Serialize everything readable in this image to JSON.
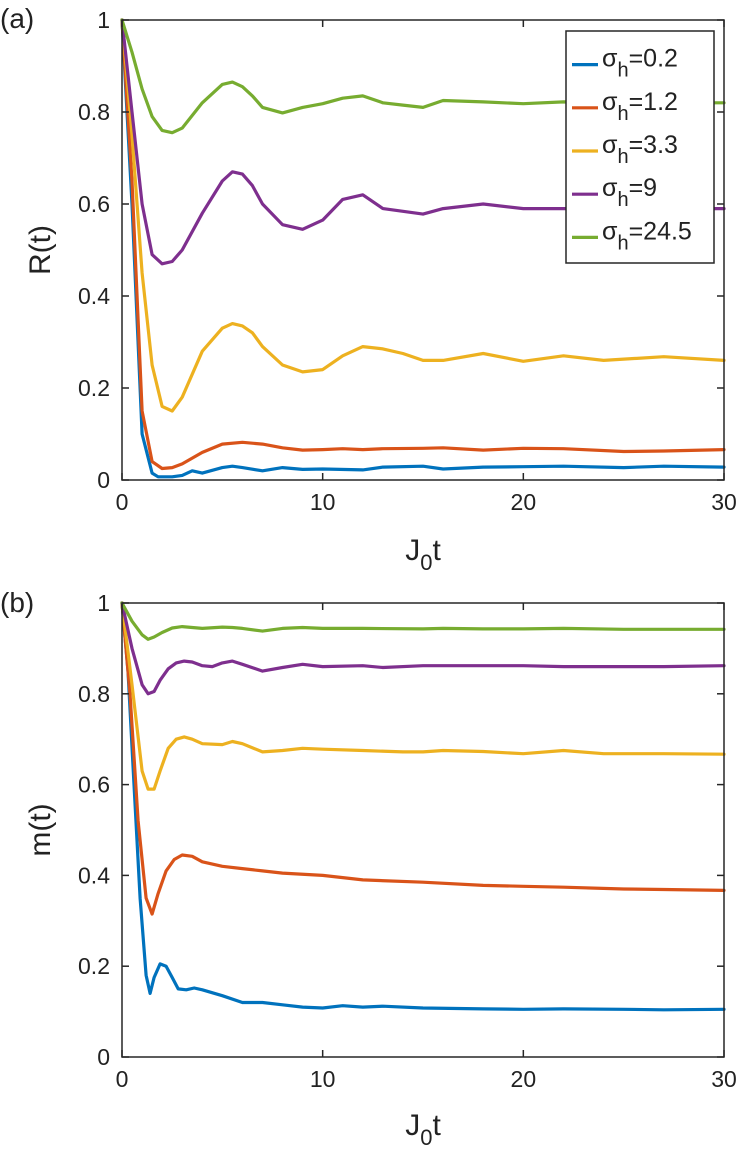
{
  "chart_data": [
    {
      "type": "line",
      "panel_label": "(a)",
      "title": "",
      "xlabel": "J",
      "xlabel_sub": "0",
      "xlabel_suffix": "t",
      "ylabel": "R(t)",
      "xlim": [
        0,
        30
      ],
      "ylim": [
        0,
        1
      ],
      "xticks": [
        0,
        10,
        20,
        30
      ],
      "yticks": [
        0,
        0.2,
        0.4,
        0.6,
        0.8,
        1
      ],
      "ytick_labels": [
        "0",
        "0.2",
        "0.4",
        "0.6",
        "0.8",
        "1"
      ],
      "xtick_labels": [
        "0",
        "10",
        "20",
        "30"
      ],
      "grid": false,
      "legend": {
        "position": "top-right",
        "entries": [
          {
            "symbol": "σ",
            "sub": "h",
            "value": "=0.2"
          },
          {
            "symbol": "σ",
            "sub": "h",
            "value": "=1.2"
          },
          {
            "symbol": "σ",
            "sub": "h",
            "value": "=3.3"
          },
          {
            "symbol": "σ",
            "sub": "h",
            "value": "=9"
          },
          {
            "symbol": "σ",
            "sub": "h",
            "value": "=24.5"
          }
        ]
      },
      "series": [
        {
          "name": "σh=0.2",
          "color": "#0072BD",
          "x": [
            0,
            0.5,
            1,
            1.5,
            1.8,
            2.5,
            3,
            3.5,
            4,
            5,
            5.5,
            6,
            7,
            8,
            9,
            10,
            12,
            13,
            15,
            16,
            18,
            20,
            22,
            25,
            27,
            30
          ],
          "y": [
            1,
            0.6,
            0.1,
            0.015,
            0.007,
            0.007,
            0.01,
            0.02,
            0.015,
            0.027,
            0.03,
            0.027,
            0.02,
            0.027,
            0.023,
            0.024,
            0.022,
            0.028,
            0.03,
            0.024,
            0.028,
            0.029,
            0.03,
            0.027,
            0.03,
            0.028
          ]
        },
        {
          "name": "σh=1.2",
          "color": "#D95319",
          "x": [
            0,
            0.5,
            1,
            1.5,
            2,
            2.5,
            3,
            4,
            5,
            6,
            7,
            8,
            9,
            10,
            11,
            12,
            13,
            15,
            16,
            18,
            20,
            22,
            25,
            27,
            30
          ],
          "y": [
            1,
            0.65,
            0.15,
            0.04,
            0.025,
            0.027,
            0.035,
            0.06,
            0.078,
            0.082,
            0.078,
            0.07,
            0.065,
            0.066,
            0.068,
            0.066,
            0.068,
            0.069,
            0.07,
            0.065,
            0.069,
            0.068,
            0.062,
            0.063,
            0.066
          ]
        },
        {
          "name": "σh=3.3",
          "color": "#EDB120",
          "x": [
            0,
            0.5,
            1,
            1.5,
            2,
            2.5,
            3,
            4,
            5,
            5.5,
            6,
            6.5,
            7,
            8,
            9,
            10,
            11,
            12,
            13,
            14,
            15,
            16,
            18,
            20,
            22,
            24,
            27,
            30
          ],
          "y": [
            1,
            0.75,
            0.45,
            0.25,
            0.16,
            0.15,
            0.18,
            0.28,
            0.33,
            0.34,
            0.335,
            0.32,
            0.29,
            0.25,
            0.235,
            0.24,
            0.27,
            0.29,
            0.285,
            0.275,
            0.26,
            0.26,
            0.275,
            0.258,
            0.27,
            0.26,
            0.268,
            0.26
          ]
        },
        {
          "name": "σh=9",
          "color": "#7E2F8E",
          "x": [
            0,
            0.5,
            1,
            1.5,
            2,
            2.5,
            3,
            4,
            5,
            5.5,
            6,
            6.5,
            7,
            8,
            9,
            10,
            11,
            12,
            13,
            15,
            16,
            18,
            20,
            22,
            25,
            27,
            30
          ],
          "y": [
            1,
            0.8,
            0.6,
            0.49,
            0.47,
            0.475,
            0.5,
            0.58,
            0.65,
            0.67,
            0.665,
            0.64,
            0.6,
            0.555,
            0.545,
            0.565,
            0.61,
            0.62,
            0.59,
            0.578,
            0.59,
            0.6,
            0.59,
            0.59,
            0.59,
            0.59,
            0.59
          ]
        },
        {
          "name": "σh=24.5",
          "color": "#77AC30",
          "x": [
            0,
            0.5,
            1,
            1.5,
            2,
            2.5,
            3,
            4,
            5,
            5.5,
            6,
            6.5,
            7,
            8,
            9,
            10,
            11,
            12,
            13,
            14,
            15,
            16,
            18,
            20,
            22,
            25,
            27,
            30
          ],
          "y": [
            1,
            0.93,
            0.85,
            0.79,
            0.76,
            0.755,
            0.765,
            0.82,
            0.86,
            0.865,
            0.855,
            0.835,
            0.81,
            0.798,
            0.81,
            0.818,
            0.83,
            0.835,
            0.82,
            0.815,
            0.81,
            0.825,
            0.822,
            0.818,
            0.822,
            0.82,
            0.82,
            0.82
          ]
        }
      ]
    },
    {
      "type": "line",
      "panel_label": "(b)",
      "title": "",
      "xlabel": "J",
      "xlabel_sub": "0",
      "xlabel_suffix": "t",
      "ylabel": "m(t)",
      "xlim": [
        0,
        30
      ],
      "ylim": [
        0,
        1
      ],
      "xticks": [
        0,
        10,
        20,
        30
      ],
      "yticks": [
        0,
        0.2,
        0.4,
        0.6,
        0.8,
        1
      ],
      "ytick_labels": [
        "0",
        "0.2",
        "0.4",
        "0.6",
        "0.8",
        "1"
      ],
      "xtick_labels": [
        "0",
        "10",
        "20",
        "30"
      ],
      "grid": false,
      "series": [
        {
          "name": "σh=0.2",
          "color": "#0072BD",
          "x": [
            0,
            0.3,
            0.6,
            0.9,
            1.2,
            1.4,
            1.6,
            1.9,
            2.2,
            2.5,
            2.8,
            3.2,
            3.6,
            4,
            5,
            6,
            7,
            8,
            9,
            10,
            11,
            12,
            13,
            15,
            18,
            20,
            22,
            25,
            27,
            30
          ],
          "y": [
            1,
            0.85,
            0.6,
            0.35,
            0.18,
            0.14,
            0.175,
            0.205,
            0.2,
            0.175,
            0.15,
            0.148,
            0.152,
            0.148,
            0.135,
            0.12,
            0.12,
            0.115,
            0.11,
            0.108,
            0.113,
            0.11,
            0.112,
            0.108,
            0.106,
            0.105,
            0.106,
            0.105,
            0.104,
            0.105
          ]
        },
        {
          "name": "σh=1.2",
          "color": "#D95319",
          "x": [
            0,
            0.4,
            0.8,
            1.2,
            1.5,
            1.8,
            2.2,
            2.6,
            3,
            3.5,
            4,
            5,
            6,
            7,
            8,
            10,
            12,
            15,
            18,
            20,
            22,
            25,
            27,
            30
          ],
          "y": [
            1,
            0.8,
            0.52,
            0.35,
            0.315,
            0.36,
            0.41,
            0.435,
            0.445,
            0.442,
            0.43,
            0.42,
            0.415,
            0.41,
            0.405,
            0.4,
            0.39,
            0.385,
            0.378,
            0.376,
            0.374,
            0.37,
            0.369,
            0.367
          ]
        },
        {
          "name": "σh=3.3",
          "color": "#EDB120",
          "x": [
            0,
            0.5,
            1,
            1.3,
            1.6,
            1.9,
            2.3,
            2.7,
            3.1,
            3.5,
            4,
            5,
            5.5,
            6,
            7,
            8,
            9,
            10,
            12,
            14,
            15,
            16,
            18,
            20,
            22,
            24,
            27,
            30
          ],
          "y": [
            1,
            0.82,
            0.63,
            0.59,
            0.59,
            0.63,
            0.68,
            0.7,
            0.705,
            0.7,
            0.69,
            0.688,
            0.695,
            0.69,
            0.672,
            0.675,
            0.68,
            0.678,
            0.675,
            0.672,
            0.672,
            0.675,
            0.673,
            0.668,
            0.675,
            0.668,
            0.668,
            0.667
          ]
        },
        {
          "name": "σh=9",
          "color": "#7E2F8E",
          "x": [
            0,
            0.5,
            1,
            1.3,
            1.6,
            1.9,
            2.3,
            2.7,
            3.1,
            3.5,
            4,
            4.5,
            5,
            5.5,
            6,
            7,
            8,
            9,
            10,
            12,
            13,
            15,
            18,
            20,
            22,
            25,
            27,
            30
          ],
          "y": [
            1,
            0.9,
            0.82,
            0.8,
            0.805,
            0.83,
            0.855,
            0.868,
            0.872,
            0.87,
            0.862,
            0.86,
            0.868,
            0.872,
            0.865,
            0.85,
            0.858,
            0.865,
            0.86,
            0.862,
            0.858,
            0.862,
            0.862,
            0.862,
            0.86,
            0.86,
            0.86,
            0.862
          ]
        },
        {
          "name": "σh=24.5",
          "color": "#77AC30",
          "x": [
            0,
            0.5,
            1,
            1.3,
            1.6,
            2,
            2.5,
            3,
            3.5,
            4,
            5,
            5.5,
            6,
            7,
            8,
            9,
            10,
            12,
            15,
            16,
            18,
            20,
            22,
            25,
            27,
            30
          ],
          "y": [
            1,
            0.96,
            0.93,
            0.92,
            0.925,
            0.935,
            0.945,
            0.948,
            0.946,
            0.944,
            0.947,
            0.946,
            0.944,
            0.938,
            0.944,
            0.946,
            0.944,
            0.944,
            0.943,
            0.944,
            0.943,
            0.943,
            0.944,
            0.942,
            0.942,
            0.942
          ]
        }
      ]
    }
  ]
}
